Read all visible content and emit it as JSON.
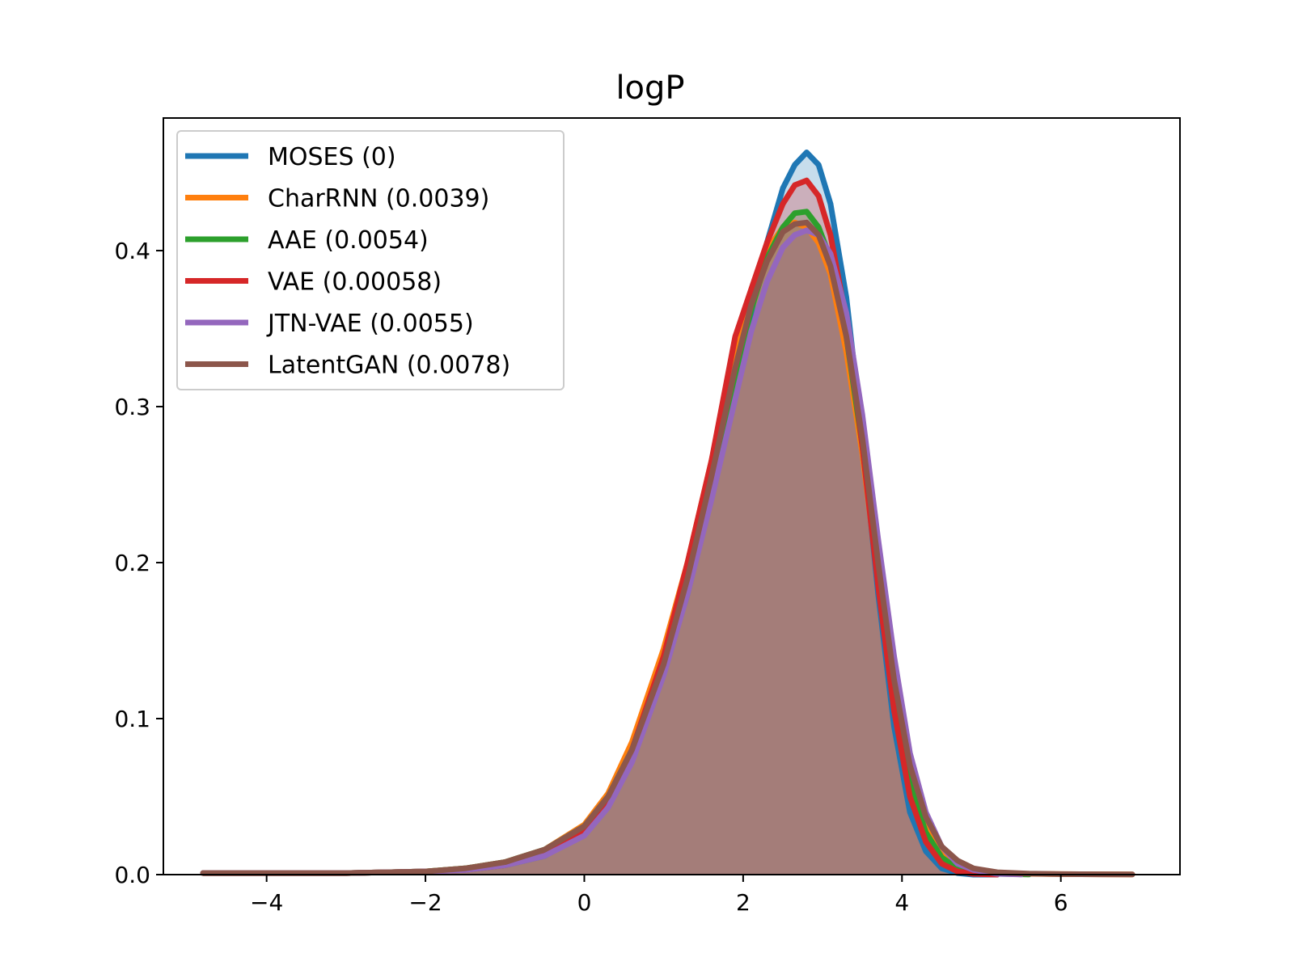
{
  "chart_data": {
    "type": "area",
    "title": "logP",
    "xlabel": "",
    "ylabel": "",
    "xlim": [
      -5.3,
      7.5
    ],
    "ylim": [
      0,
      0.485
    ],
    "xticks": [
      {
        "value": -4,
        "label": "−4"
      },
      {
        "value": -2,
        "label": "−2"
      },
      {
        "value": 0,
        "label": "0"
      },
      {
        "value": 2,
        "label": "2"
      },
      {
        "value": 4,
        "label": "4"
      },
      {
        "value": 6,
        "label": "6"
      }
    ],
    "yticks": [
      {
        "value": 0.0,
        "label": "0.0"
      },
      {
        "value": 0.1,
        "label": "0.1"
      },
      {
        "value": 0.2,
        "label": "0.2"
      },
      {
        "value": 0.3,
        "label": "0.3"
      },
      {
        "value": 0.4,
        "label": "0.4"
      }
    ],
    "grid": false,
    "legend_position": "upper-left",
    "fill_opacity": 0.25,
    "series": [
      {
        "name": "MOSES (0)",
        "color": "#1f77b4",
        "x": [
          -4.8,
          -4,
          -3,
          -2,
          -1.5,
          -1.0,
          -0.5,
          0.0,
          0.3,
          0.6,
          1.0,
          1.3,
          1.6,
          1.9,
          2.1,
          2.3,
          2.5,
          2.65,
          2.8,
          2.95,
          3.1,
          3.3,
          3.5,
          3.7,
          3.9,
          4.1,
          4.3,
          4.5,
          4.7,
          4.9,
          5.2
        ],
        "y": [
          0.001,
          0.001,
          0.001,
          0.002,
          0.003,
          0.006,
          0.012,
          0.027,
          0.045,
          0.075,
          0.13,
          0.18,
          0.245,
          0.315,
          0.36,
          0.405,
          0.44,
          0.455,
          0.463,
          0.455,
          0.43,
          0.37,
          0.28,
          0.18,
          0.095,
          0.04,
          0.015,
          0.004,
          0.001,
          0.0,
          0.0
        ]
      },
      {
        "name": "CharRNN (0.0039)",
        "color": "#ff7f0e",
        "x": [
          -4.8,
          -4,
          -3,
          -2,
          -1.5,
          -1.0,
          -0.5,
          0.0,
          0.3,
          0.6,
          1.0,
          1.3,
          1.6,
          1.9,
          2.1,
          2.3,
          2.5,
          2.65,
          2.8,
          2.95,
          3.1,
          3.3,
          3.5,
          3.7,
          3.9,
          4.1,
          4.3,
          4.5,
          4.7,
          4.9,
          5.2,
          5.6,
          6.0,
          6.5,
          6.9
        ],
        "y": [
          0.001,
          0.001,
          0.001,
          0.002,
          0.004,
          0.008,
          0.016,
          0.032,
          0.052,
          0.085,
          0.145,
          0.2,
          0.265,
          0.33,
          0.37,
          0.4,
          0.415,
          0.418,
          0.415,
          0.405,
          0.385,
          0.335,
          0.27,
          0.19,
          0.115,
          0.062,
          0.031,
          0.015,
          0.007,
          0.003,
          0.001,
          0.0005,
          0.0003,
          0.0002,
          0.0001
        ]
      },
      {
        "name": "AAE (0.0054)",
        "color": "#2ca02c",
        "x": [
          -4.8,
          -4,
          -3,
          -2,
          -1.5,
          -1.0,
          -0.5,
          0.0,
          0.3,
          0.6,
          1.0,
          1.3,
          1.6,
          1.9,
          2.1,
          2.3,
          2.5,
          2.65,
          2.8,
          2.95,
          3.1,
          3.3,
          3.5,
          3.7,
          3.9,
          4.1,
          4.3,
          4.5,
          4.7,
          4.9,
          5.2,
          5.6
        ],
        "y": [
          0.001,
          0.001,
          0.001,
          0.002,
          0.004,
          0.008,
          0.016,
          0.031,
          0.05,
          0.08,
          0.138,
          0.19,
          0.255,
          0.32,
          0.362,
          0.395,
          0.415,
          0.424,
          0.425,
          0.415,
          0.395,
          0.345,
          0.275,
          0.19,
          0.112,
          0.058,
          0.027,
          0.011,
          0.004,
          0.002,
          0.0005,
          0.0001
        ]
      },
      {
        "name": "VAE (0.00058)",
        "color": "#d62728",
        "x": [
          -4.8,
          -4,
          -3,
          -2,
          -1.5,
          -1.0,
          -0.5,
          0.0,
          0.3,
          0.6,
          1.0,
          1.3,
          1.6,
          1.9,
          2.1,
          2.3,
          2.5,
          2.65,
          2.8,
          2.95,
          3.1,
          3.3,
          3.5,
          3.7,
          3.9,
          4.1,
          4.3,
          4.5,
          4.7,
          4.9,
          5.2
        ],
        "y": [
          0.001,
          0.001,
          0.001,
          0.002,
          0.003,
          0.006,
          0.013,
          0.028,
          0.048,
          0.08,
          0.14,
          0.2,
          0.265,
          0.345,
          0.375,
          0.405,
          0.43,
          0.442,
          0.445,
          0.435,
          0.41,
          0.355,
          0.275,
          0.185,
          0.105,
          0.05,
          0.021,
          0.007,
          0.002,
          0.0005,
          0.0
        ]
      },
      {
        "name": "JTN-VAE (0.0055)",
        "color": "#9467bd",
        "x": [
          -4.8,
          -4,
          -3,
          -2,
          -1.5,
          -1.0,
          -0.5,
          0.0,
          0.3,
          0.6,
          1.0,
          1.3,
          1.6,
          1.9,
          2.1,
          2.3,
          2.5,
          2.65,
          2.8,
          2.95,
          3.1,
          3.3,
          3.5,
          3.7,
          3.9,
          4.1,
          4.3,
          4.5,
          4.7,
          4.9,
          5.2,
          5.5
        ],
        "y": [
          0.001,
          0.001,
          0.001,
          0.002,
          0.003,
          0.006,
          0.012,
          0.025,
          0.043,
          0.072,
          0.128,
          0.18,
          0.24,
          0.305,
          0.348,
          0.38,
          0.402,
          0.41,
          0.413,
          0.41,
          0.398,
          0.36,
          0.295,
          0.215,
          0.14,
          0.078,
          0.04,
          0.018,
          0.007,
          0.003,
          0.0005,
          0.0001
        ]
      },
      {
        "name": "LatentGAN (0.0078)",
        "color": "#8c564b",
        "x": [
          -4.8,
          -4,
          -3,
          -2,
          -1.5,
          -1.0,
          -0.5,
          0.0,
          0.3,
          0.6,
          1.0,
          1.3,
          1.6,
          1.9,
          2.1,
          2.3,
          2.5,
          2.65,
          2.8,
          2.95,
          3.1,
          3.3,
          3.5,
          3.7,
          3.9,
          4.1,
          4.3,
          4.5,
          4.7,
          4.9,
          5.2,
          5.6,
          6.0,
          6.5,
          6.9
        ],
        "y": [
          0.001,
          0.001,
          0.001,
          0.002,
          0.004,
          0.008,
          0.016,
          0.031,
          0.05,
          0.08,
          0.135,
          0.19,
          0.255,
          0.325,
          0.365,
          0.393,
          0.412,
          0.417,
          0.418,
          0.41,
          0.39,
          0.345,
          0.28,
          0.2,
          0.125,
          0.07,
          0.037,
          0.018,
          0.009,
          0.004,
          0.0015,
          0.0006,
          0.0003,
          0.0002,
          0.0001
        ]
      }
    ]
  }
}
